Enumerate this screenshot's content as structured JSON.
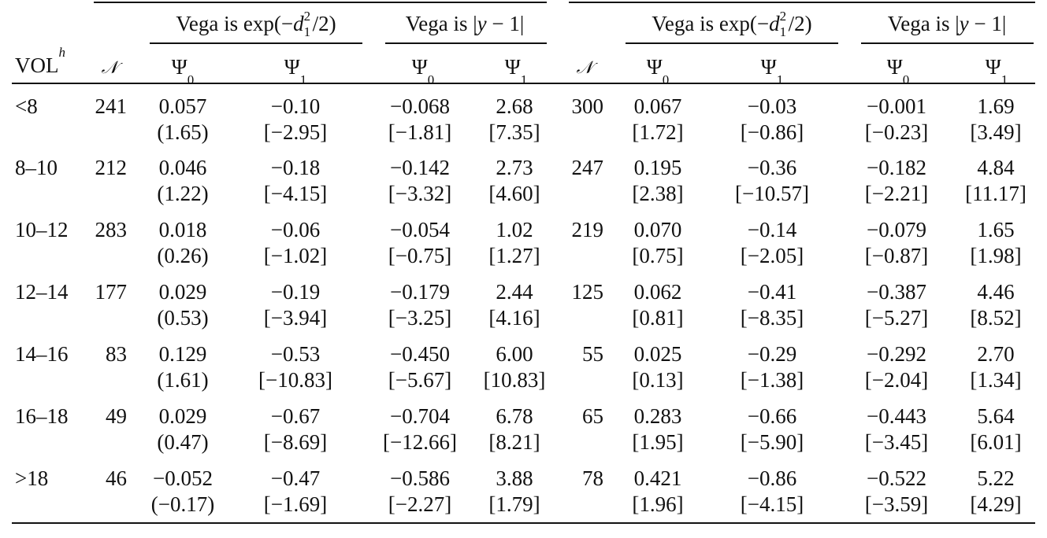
{
  "table": {
    "group_headers": {
      "left_exp": "Vega is exp(−d₁²/2)",
      "left_abs": "Vega is |y − 1|",
      "right_exp": "Vega is exp(−d₁²/2)",
      "right_abs": "Vega is |y − 1|"
    },
    "columns": {
      "vol": "VOLʰ",
      "n_left": "𝒩",
      "psi0": "Ψ₀",
      "psi1": "Ψ₁",
      "n_right": "𝒩"
    },
    "rows": [
      {
        "vol": "<8",
        "n1": "241",
        "a0": "0.057",
        "a0s": "(1.65)",
        "a1": "−0.10",
        "a1s": "[−2.95]",
        "b0": "−0.068",
        "b0s": "[−1.81]",
        "b1": "2.68",
        "b1s": "[7.35]",
        "n2": "300",
        "c0": "0.067",
        "c0s": "[1.72]",
        "c1": "−0.03",
        "c1s": "[−0.86]",
        "d0": "−0.001",
        "d0s": "[−0.23]",
        "d1": "1.69",
        "d1s": "[3.49]"
      },
      {
        "vol": "8–10",
        "n1": "212",
        "a0": "0.046",
        "a0s": "(1.22)",
        "a1": "−0.18",
        "a1s": "[−4.15]",
        "b0": "−0.142",
        "b0s": "[−3.32]",
        "b1": "2.73",
        "b1s": "[4.60]",
        "n2": "247",
        "c0": "0.195",
        "c0s": "[2.38]",
        "c1": "−0.36",
        "c1s": "[−10.57]",
        "d0": "−0.182",
        "d0s": "[−2.21]",
        "d1": "4.84",
        "d1s": "[11.17]"
      },
      {
        "vol": "10–12",
        "n1": "283",
        "a0": "0.018",
        "a0s": "(0.26)",
        "a1": "−0.06",
        "a1s": "[−1.02]",
        "b0": "−0.054",
        "b0s": "[−0.75]",
        "b1": "1.02",
        "b1s": "[1.27]",
        "n2": "219",
        "c0": "0.070",
        "c0s": "[0.75]",
        "c1": "−0.14",
        "c1s": "[−2.05]",
        "d0": "−0.079",
        "d0s": "[−0.87]",
        "d1": "1.65",
        "d1s": "[1.98]"
      },
      {
        "vol": "12–14",
        "n1": "177",
        "a0": "0.029",
        "a0s": "(0.53)",
        "a1": "−0.19",
        "a1s": "[−3.94]",
        "b0": "−0.179",
        "b0s": "[−3.25]",
        "b1": "2.44",
        "b1s": "[4.16]",
        "n2": "125",
        "c0": "0.062",
        "c0s": "[0.81]",
        "c1": "−0.41",
        "c1s": "[−8.35]",
        "d0": "−0.387",
        "d0s": "[−5.27]",
        "d1": "4.46",
        "d1s": "[8.52]"
      },
      {
        "vol": "14–16",
        "n1": "83",
        "a0": "0.129",
        "a0s": "(1.61)",
        "a1": "−0.53",
        "a1s": "[−10.83]",
        "b0": "−0.450",
        "b0s": "[−5.67]",
        "b1": "6.00",
        "b1s": "[10.83]",
        "n2": "55",
        "c0": "0.025",
        "c0s": "[0.13]",
        "c1": "−0.29",
        "c1s": "[−1.38]",
        "d0": "−0.292",
        "d0s": "[−2.04]",
        "d1": "2.70",
        "d1s": "[1.34]"
      },
      {
        "vol": "16–18",
        "n1": "49",
        "a0": "0.029",
        "a0s": "(0.47)",
        "a1": "−0.67",
        "a1s": "[−8.69]",
        "b0": "−0.704",
        "b0s": "[−12.66]",
        "b1": "6.78",
        "b1s": "[8.21]",
        "n2": "65",
        "c0": "0.283",
        "c0s": "[1.95]",
        "c1": "−0.66",
        "c1s": "[−5.90]",
        "d0": "−0.443",
        "d0s": "[−3.45]",
        "d1": "5.64",
        "d1s": "[6.01]"
      },
      {
        "vol": ">18",
        "n1": "46",
        "a0": "−0.052",
        "a0s": "(−0.17)",
        "a1": "−0.47",
        "a1s": "[−1.69]",
        "b0": "−0.586",
        "b0s": "[−2.27]",
        "b1": "3.88",
        "b1s": "[1.79]",
        "n2": "78",
        "c0": "0.421",
        "c0s": "[1.96]",
        "c1": "−0.86",
        "c1s": "[−4.15]",
        "d0": "−0.522",
        "d0s": "[−3.59]",
        "d1": "5.22",
        "d1s": "[4.29]"
      }
    ]
  }
}
